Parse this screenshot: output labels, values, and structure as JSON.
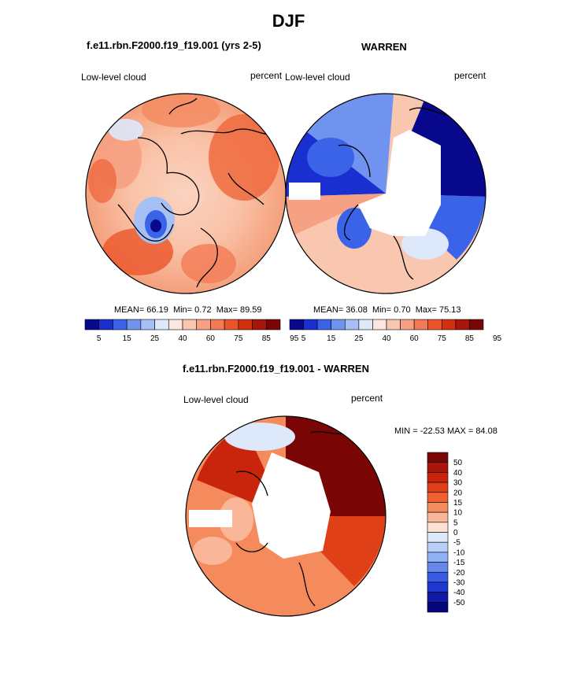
{
  "page_title": "DJF",
  "palette": {
    "cb1": [
      "#08088c",
      "#1a2fd0",
      "#3a63e8",
      "#6f93ef",
      "#a6c0f5",
      "#dde8fb",
      "#fde6dd",
      "#f9c6b0",
      "#f6a183",
      "#f47a55",
      "#ec552c",
      "#d33010",
      "#a8150a",
      "#7a0505"
    ],
    "cb2": [
      "#7a0505",
      "#a8150a",
      "#c8250c",
      "#e04018",
      "#f06030",
      "#f58a5c",
      "#f9b698",
      "#fde1d2",
      "#dde8fb",
      "#b8d0f7",
      "#8fb0f2",
      "#6488ec",
      "#3a5ce4",
      "#2038cf",
      "#0f1aa8",
      "#06067a"
    ],
    "land": "#000000"
  },
  "chart_data": [
    {
      "type": "heatmap",
      "map": "polar-stereographic-north",
      "title": "f.e11.rbn.F2000.f19_f19.001 (yrs 2-5)",
      "left_label": "Low-level cloud",
      "right_label": "percent",
      "stats": {
        "mean_label": "MEAN=",
        "mean": "66.19",
        "min_label": "Min=",
        "min": "0.72",
        "max_label": "Max=",
        "max": "89.59"
      },
      "colorbar_levels": [
        5,
        10,
        15,
        20,
        25,
        30,
        40,
        50,
        60,
        70,
        75,
        80,
        85,
        90,
        95
      ],
      "colorbar_tick_labels": [
        "5",
        "15",
        "25",
        "40",
        "60",
        "75",
        "85",
        "95"
      ]
    },
    {
      "type": "heatmap",
      "map": "polar-stereographic-north",
      "title": "WARREN",
      "left_label": "Low-level cloud",
      "right_label": "percent",
      "stats": {
        "mean_label": "MEAN=",
        "mean": "36.08",
        "min_label": "Min=",
        "min": "0.70",
        "max_label": "Max=",
        "max": "75.13"
      },
      "colorbar_levels": [
        5,
        10,
        15,
        20,
        25,
        30,
        40,
        50,
        60,
        70,
        75,
        80,
        85,
        90,
        95
      ],
      "colorbar_tick_labels": [
        "5",
        "15",
        "25",
        "40",
        "60",
        "75",
        "85",
        "95"
      ]
    },
    {
      "type": "heatmap",
      "map": "polar-stereographic-north",
      "title": "f.e11.rbn.F2000.f19_f19.001 - WARREN",
      "left_label": "Low-level cloud",
      "right_label": "percent",
      "stats_text": "MIN = -22.53 MAX = 84.08",
      "colorbar_levels": [
        50,
        40,
        30,
        20,
        15,
        10,
        5,
        0,
        -5,
        -10,
        -15,
        -20,
        -30,
        -40,
        -50
      ],
      "colorbar_tick_labels": [
        "50",
        "40",
        "30",
        "20",
        "15",
        "10",
        "5",
        "0",
        "-5",
        "-10",
        "-15",
        "-20",
        "-30",
        "-40",
        "-50"
      ]
    }
  ]
}
